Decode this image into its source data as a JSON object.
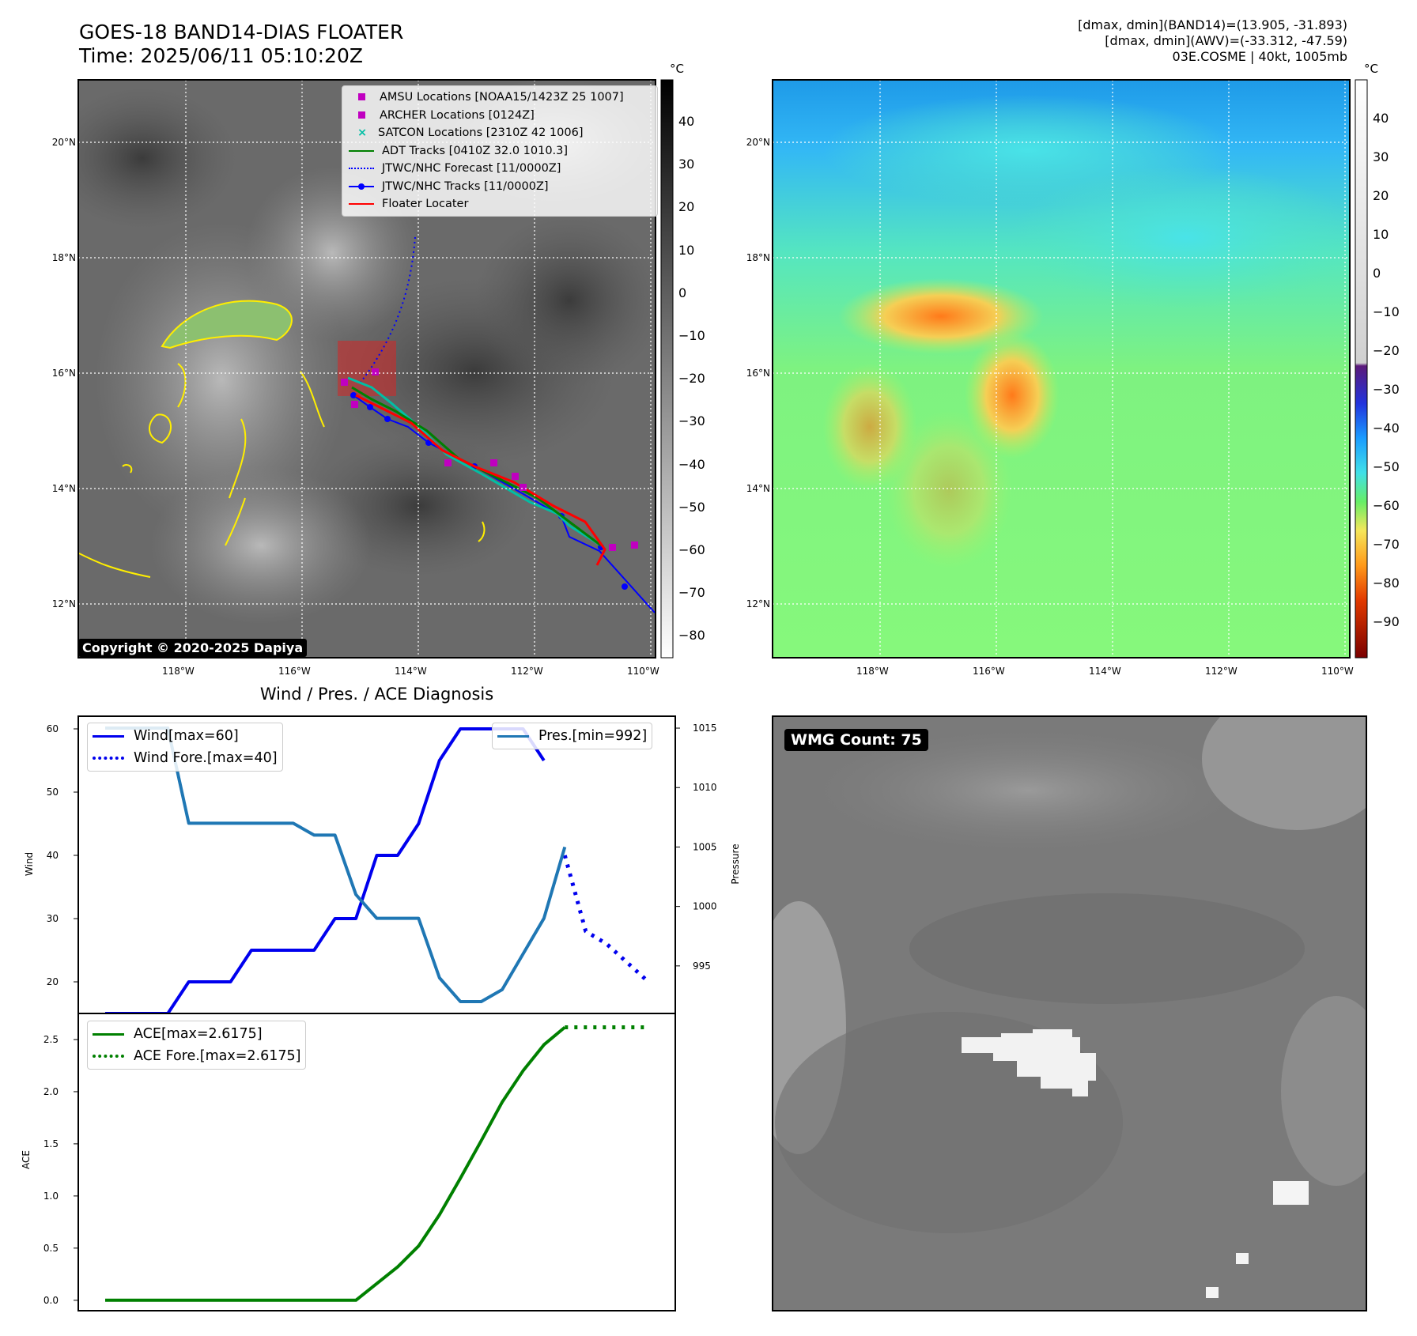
{
  "header": {
    "title_line1": "GOES-18 BAND14-DIAS FLOATER",
    "title_line2": "Time: 2025/06/11 05:10:20Z",
    "stats_line1": "[dmax, dmin](BAND14)=(13.905, -31.893)",
    "stats_line2": "[dmax, dmin](AWV)=(-33.312, -47.59)",
    "stats_line3": "03E.COSME | 40kt, 1005mb"
  },
  "maps": {
    "lat_labels": [
      "20°N",
      "18°N",
      "16°N",
      "14°N",
      "12°N"
    ],
    "lon_labels": [
      "118°W",
      "116°W",
      "114°W",
      "112°W",
      "110°W"
    ],
    "copyright": "Copyright © 2020-2025 Dapiya",
    "left_colorbar": {
      "unit": "°C",
      "ticks": [
        "40",
        "30",
        "20",
        "10",
        "0",
        "−10",
        "−20",
        "−30",
        "−40",
        "−50",
        "−60",
        "−70",
        "−80"
      ]
    },
    "right_colorbar": {
      "unit": "°C",
      "ticks": [
        "40",
        "30",
        "20",
        "10",
        "0",
        "−10",
        "−20",
        "−30",
        "−40",
        "−50",
        "−60",
        "−70",
        "−80",
        "−90"
      ]
    },
    "legend": [
      {
        "label": "AMSU Locations [NOAA15/1423Z 25 1007]",
        "marker": "square",
        "color": "#c000c0"
      },
      {
        "label": "ARCHER Locations [0124Z]",
        "marker": "square",
        "color": "#c000c0"
      },
      {
        "label": "SATCON Locations [2310Z 42 1006]",
        "marker": "x",
        "color": "#00bfa5"
      },
      {
        "label": "ADT Tracks [0410Z 32.0 1010.3]",
        "marker": "line",
        "color": "#008000"
      },
      {
        "label": "JTWC/NHC Forecast [11/0000Z]",
        "marker": "dotted",
        "color": "#0000ff"
      },
      {
        "label": "JTWC/NHC Tracks [11/0000Z]",
        "marker": "line-dot",
        "color": "#0000ff"
      },
      {
        "label": "Floater Locater",
        "marker": "line",
        "color": "#ff0000"
      }
    ],
    "wmg_label": "WMG Count: 75"
  },
  "chart_data": [
    {
      "type": "line",
      "title": "Wind / Pres. / ACE Diagnosis",
      "ylabel": "Wind",
      "y2label": "Pressure",
      "ylim": [
        15,
        62
      ],
      "y2lim": [
        991,
        1016
      ],
      "yticks": [
        "60",
        "50",
        "40",
        "30",
        "20"
      ],
      "y2ticks": [
        "1015",
        "1010",
        "1005",
        "1000",
        "995"
      ],
      "legend_left": [
        "Wind[max=60]",
        "Wind Fore.[max=40]"
      ],
      "legend_right": [
        "Pres.[min=992]"
      ],
      "series": [
        {
          "name": "Wind[max=60]",
          "color": "#0000ee",
          "style": "solid",
          "x": [
            0,
            1,
            2,
            3,
            4,
            5,
            6,
            7,
            8,
            9,
            10,
            11,
            12,
            13,
            14,
            15,
            16,
            17,
            18,
            19,
            20,
            21
          ],
          "values": [
            15,
            15,
            15,
            15,
            20,
            20,
            20,
            25,
            25,
            25,
            25,
            30,
            30,
            40,
            40,
            45,
            55,
            60,
            60,
            60,
            60,
            55
          ]
        },
        {
          "name": "Wind Fore.[max=40]",
          "color": "#0000ee",
          "style": "dotted",
          "x": [
            22,
            23,
            24,
            25,
            26
          ],
          "values": [
            40,
            28,
            26,
            23,
            20
          ]
        },
        {
          "name": "Pres.[min=992]",
          "color": "#1f77b4",
          "style": "solid",
          "axis": "right",
          "x": [
            0,
            1,
            2,
            3,
            4,
            5,
            6,
            7,
            8,
            9,
            10,
            11,
            12,
            13,
            14,
            15,
            16,
            17,
            18,
            19,
            20,
            21,
            22
          ],
          "values": [
            1015,
            1015,
            1015,
            1015,
            1007,
            1007,
            1007,
            1007,
            1007,
            1007,
            1006,
            1006,
            1001,
            999,
            999,
            999,
            994,
            992,
            992,
            993,
            996,
            999,
            1005
          ]
        }
      ]
    },
    {
      "type": "line",
      "ylabel": "ACE",
      "ylim": [
        -0.1,
        2.75
      ],
      "yticks": [
        "2.5",
        "2.0",
        "1.5",
        "1.0",
        "0.5",
        "0.0"
      ],
      "legend": [
        "ACE[max=2.6175]",
        "ACE Fore.[max=2.6175]"
      ],
      "series": [
        {
          "name": "ACE[max=2.6175]",
          "color": "#008000",
          "style": "solid",
          "x": [
            0,
            1,
            2,
            3,
            4,
            5,
            6,
            7,
            8,
            9,
            10,
            11,
            12,
            13,
            14,
            15,
            16,
            17,
            18,
            19,
            20,
            21,
            22
          ],
          "values": [
            0,
            0,
            0,
            0,
            0,
            0,
            0,
            0,
            0,
            0,
            0,
            0,
            0,
            0.16,
            0.32,
            0.52,
            0.82,
            1.17,
            1.53,
            1.9,
            2.2,
            2.45,
            2.6175
          ]
        },
        {
          "name": "ACE Fore.[max=2.6175]",
          "color": "#008000",
          "style": "dotted",
          "x": [
            22,
            23,
            24,
            25,
            26
          ],
          "values": [
            2.6175,
            2.6175,
            2.6175,
            2.6175,
            2.6175
          ]
        }
      ]
    }
  ]
}
